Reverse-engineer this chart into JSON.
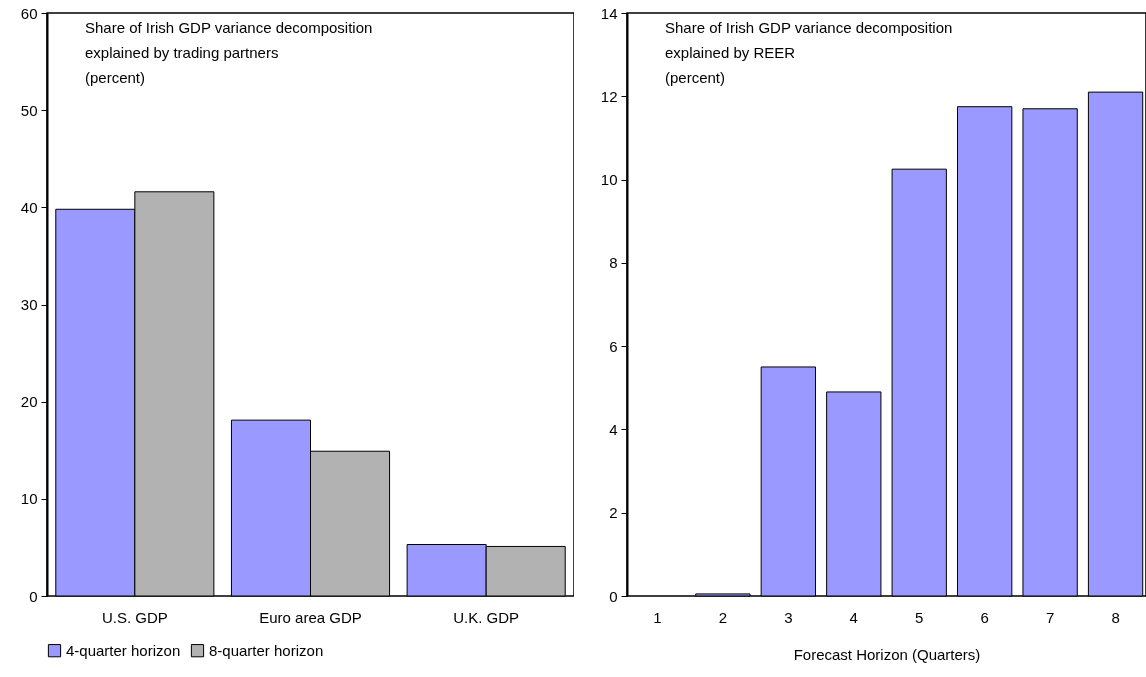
{
  "chart_data": [
    {
      "type": "bar",
      "title": "Share of Irish GDP variance decomposition\nexplained by trading partners\n(percent)",
      "categories": [
        "U.S. GDP",
        "Euro area GDP",
        "U.K. GDP"
      ],
      "series": [
        {
          "name": "4-quarter horizon",
          "color": "#9999ff",
          "values": [
            39.8,
            18.1,
            5.3
          ]
        },
        {
          "name": "8-quarter horizon",
          "color": "#b2b2b2",
          "values": [
            41.6,
            14.9,
            5.1
          ]
        }
      ],
      "ylim": [
        0,
        60
      ],
      "yticks": [
        0,
        10,
        20,
        30,
        40,
        50,
        60
      ],
      "legend": "bottom"
    },
    {
      "type": "bar",
      "title": "Share of Irish GDP variance decomposition\nexplained by REER\n(percent)",
      "xlabel": "Forecast Horizon (Quarters)",
      "categories": [
        "1",
        "2",
        "3",
        "4",
        "5",
        "6",
        "7",
        "8"
      ],
      "values": [
        0,
        0.05,
        5.5,
        4.9,
        10.25,
        11.75,
        11.7,
        12.1
      ],
      "color": "#9999ff",
      "ylim": [
        0,
        14
      ],
      "yticks": [
        0,
        2,
        4,
        6,
        8,
        10,
        12,
        14
      ]
    }
  ]
}
